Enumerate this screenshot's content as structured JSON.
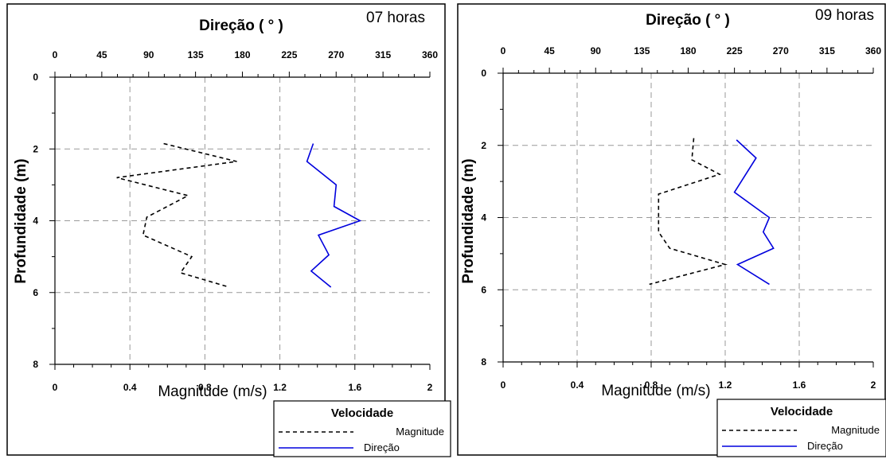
{
  "chart_data": [
    {
      "type": "line",
      "hour_label": "07 horas",
      "top_axis_title": "Direção ( ° )",
      "bottom_axis_title": "Magnitude (m/s)",
      "y_axis_title": "Profundidade (m)",
      "direction_ticks": [
        "0",
        "45",
        "90",
        "135",
        "180",
        "225",
        "270",
        "315",
        "360"
      ],
      "magnitude_ticks": [
        "0",
        "0.4",
        "0.8",
        "1.2",
        "1.6",
        "2"
      ],
      "depth_ticks": [
        "0",
        "2",
        "4",
        "6",
        "8"
      ],
      "xlim_magnitude": [
        0,
        2
      ],
      "xlim_direction": [
        0,
        360
      ],
      "ylim_depth": [
        8,
        0
      ],
      "grid": true,
      "legend": {
        "title": "Velocidade",
        "position": "bottom-right",
        "items": [
          "Magnitude",
          "Direção"
        ]
      },
      "series": [
        {
          "name": "Magnitude",
          "style": "dashed",
          "color": "#000000",
          "points": [
            [
              0.58,
              1.85
            ],
            [
              0.97,
              2.35
            ],
            [
              0.33,
              2.8
            ],
            [
              0.71,
              3.3
            ],
            [
              0.49,
              3.9
            ],
            [
              0.47,
              4.4
            ],
            [
              0.73,
              5.0
            ],
            [
              0.67,
              5.45
            ],
            [
              0.93,
              5.85
            ]
          ]
        },
        {
          "name": "Direção",
          "style": "solid",
          "color": "#0000dd",
          "points": [
            [
              248,
              1.85
            ],
            [
              242,
              2.35
            ],
            [
              270,
              3.0
            ],
            [
              268,
              3.6
            ],
            [
              293,
              4.0
            ],
            [
              253,
              4.4
            ],
            [
              263,
              4.95
            ],
            [
              246,
              5.4
            ],
            [
              265,
              5.85
            ]
          ]
        }
      ]
    },
    {
      "type": "line",
      "hour_label": "09 horas",
      "top_axis_title": "Direção ( ° )",
      "bottom_axis_title": "Magnitude (m/s)",
      "y_axis_title": "Profundidade (m)",
      "direction_ticks": [
        "0",
        "45",
        "90",
        "135",
        "180",
        "225",
        "270",
        "315",
        "360"
      ],
      "magnitude_ticks": [
        "0",
        "0.4",
        "0.8",
        "1.2",
        "1.6",
        "2"
      ],
      "depth_ticks": [
        "0",
        "2",
        "4",
        "6",
        "8"
      ],
      "xlim_magnitude": [
        0,
        2
      ],
      "xlim_direction": [
        0,
        360
      ],
      "ylim_depth": [
        8,
        0
      ],
      "grid": true,
      "legend": {
        "title": "Velocidade",
        "position": "bottom-right",
        "items": [
          "Magnitude",
          "Direção"
        ]
      },
      "series": [
        {
          "name": "Magnitude",
          "style": "dashed",
          "color": "#000000",
          "points": [
            [
              1.03,
              1.8
            ],
            [
              1.02,
              2.4
            ],
            [
              1.17,
              2.8
            ],
            [
              0.84,
              3.35
            ],
            [
              0.84,
              3.95
            ],
            [
              0.84,
              4.4
            ],
            [
              0.9,
              4.85
            ],
            [
              1.2,
              5.3
            ],
            [
              0.79,
              5.85
            ]
          ]
        },
        {
          "name": "Direção",
          "style": "solid",
          "color": "#0000dd",
          "points": [
            [
              227,
              1.85
            ],
            [
              246,
              2.35
            ],
            [
              225,
              3.3
            ],
            [
              259,
              4.0
            ],
            [
              253,
              4.4
            ],
            [
              263,
              4.85
            ],
            [
              228,
              5.3
            ],
            [
              259,
              5.85
            ]
          ]
        }
      ]
    }
  ]
}
